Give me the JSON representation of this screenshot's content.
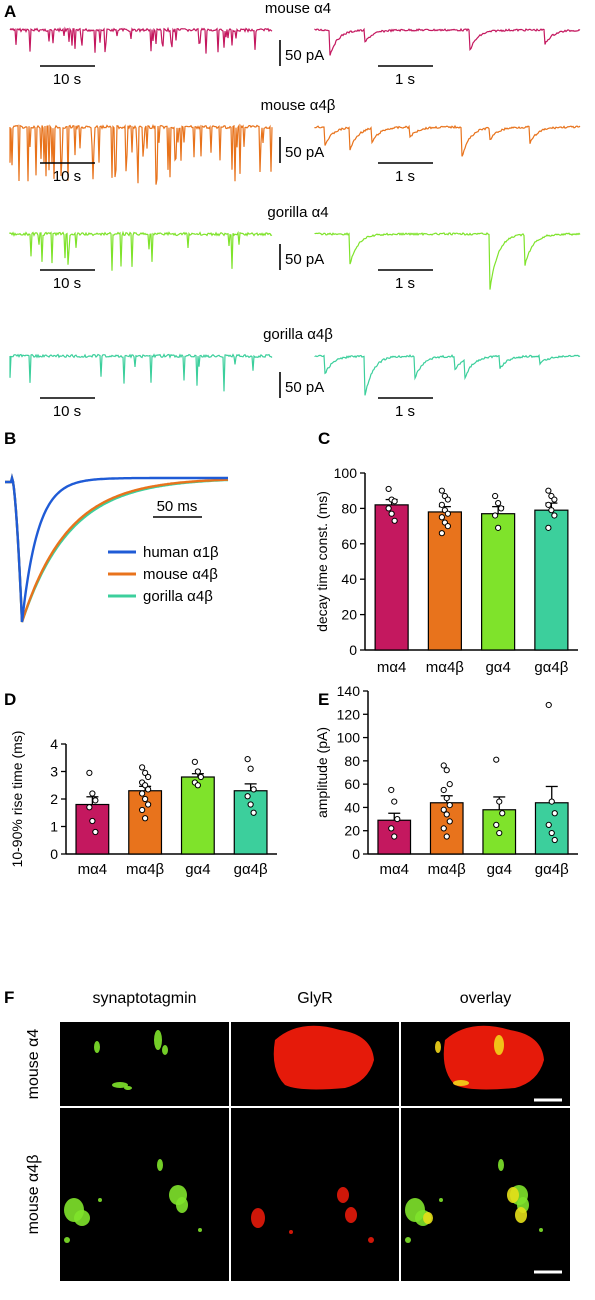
{
  "colors": {
    "mouse_a4": "#c4185f",
    "mouse_a4b": "#e8731c",
    "gorilla_a4": "#7fe32b",
    "gorilla_a4b": "#3ccf9c",
    "human_a1b": "#1f5bd6"
  },
  "panelA": {
    "letter": "A",
    "traces": [
      {
        "title": "mouse α4",
        "color_key": "mouse_a4",
        "amplitude_scale": "50 pA",
        "long_scale": "10 s",
        "short_scale": "1 s"
      },
      {
        "title": "mouse α4β",
        "color_key": "mouse_a4b",
        "amplitude_scale": "50 pA",
        "long_scale": "10 s",
        "short_scale": "1 s"
      },
      {
        "title": "gorilla α4",
        "color_key": "gorilla_a4",
        "amplitude_scale": "50 pA",
        "long_scale": "10 s",
        "short_scale": "1 s"
      },
      {
        "title": "gorilla α4β",
        "color_key": "gorilla_a4b",
        "amplitude_scale": "50 pA",
        "long_scale": "10 s",
        "short_scale": "1 s"
      }
    ]
  },
  "panelB": {
    "letter": "B",
    "time_scale": "50 ms",
    "legend": [
      {
        "label": "human α1β",
        "color_key": "human_a1b"
      },
      {
        "label": "mouse α4β",
        "color_key": "mouse_a4b"
      },
      {
        "label": "gorilla α4β",
        "color_key": "gorilla_a4b"
      }
    ]
  },
  "panelF": {
    "letter": "F",
    "columns": [
      "synaptotagmin",
      "GlyR",
      "overlay"
    ],
    "rows": [
      "mouse α4",
      "mouse α4β"
    ]
  },
  "chart_data": [
    {
      "panel": "C",
      "type": "bar",
      "categories": [
        "mα4",
        "mα4β",
        "gα4",
        "gα4β"
      ],
      "values": [
        82,
        78,
        77,
        79
      ],
      "errors": [
        3,
        3,
        4,
        4
      ],
      "points": [
        [
          91,
          85,
          84,
          80,
          77,
          73
        ],
        [
          90,
          87,
          85,
          82,
          79,
          77,
          75,
          72,
          70,
          66
        ],
        [
          87,
          83,
          80,
          76,
          69
        ],
        [
          90,
          87,
          85,
          82,
          79,
          76,
          69
        ]
      ],
      "colors": [
        "#c4185f",
        "#e8731c",
        "#7fe32b",
        "#3ccf9c"
      ],
      "ylabel": "decay time const. (ms)",
      "ylim": [
        0,
        100
      ],
      "yticks": [
        0,
        20,
        40,
        60,
        80,
        100
      ]
    },
    {
      "panel": "D",
      "type": "bar",
      "categories": [
        "mα4",
        "mα4β",
        "gα4",
        "gα4β"
      ],
      "values": [
        1.8,
        2.3,
        2.8,
        2.3
      ],
      "errors": [
        0.28,
        0.16,
        0.12,
        0.25
      ],
      "points": [
        [
          2.95,
          2.2,
          1.95,
          1.7,
          1.2,
          0.8
        ],
        [
          3.15,
          2.95,
          2.8,
          2.6,
          2.5,
          2.35,
          2.2,
          2.0,
          1.8,
          1.6,
          1.3
        ],
        [
          3.35,
          3.0,
          2.8,
          2.6,
          2.5
        ],
        [
          3.45,
          3.1,
          2.35,
          2.1,
          1.8,
          1.5
        ]
      ],
      "colors": [
        "#c4185f",
        "#e8731c",
        "#7fe32b",
        "#3ccf9c"
      ],
      "ylabel": "10-90% rise time (ms)",
      "ylim": [
        0,
        4
      ],
      "yticks": [
        0,
        1,
        2,
        3,
        4
      ]
    },
    {
      "panel": "E",
      "type": "bar",
      "categories": [
        "mα4",
        "mα4β",
        "gα4",
        "gα4β"
      ],
      "values": [
        29,
        44,
        38,
        44
      ],
      "errors": [
        6,
        6,
        11,
        14
      ],
      "points": [
        [
          55,
          45,
          30,
          22,
          15
        ],
        [
          76,
          72,
          60,
          55,
          48,
          42,
          38,
          34,
          28,
          22,
          15
        ],
        [
          81,
          45,
          35,
          25,
          18
        ],
        [
          128,
          45,
          35,
          25,
          18,
          12
        ]
      ],
      "colors": [
        "#c4185f",
        "#e8731c",
        "#7fe32b",
        "#3ccf9c"
      ],
      "ylabel": "amplitude (pA)",
      "ylim": [
        0,
        140
      ],
      "yticks": [
        0,
        20,
        40,
        60,
        80,
        100,
        120,
        140
      ]
    }
  ]
}
